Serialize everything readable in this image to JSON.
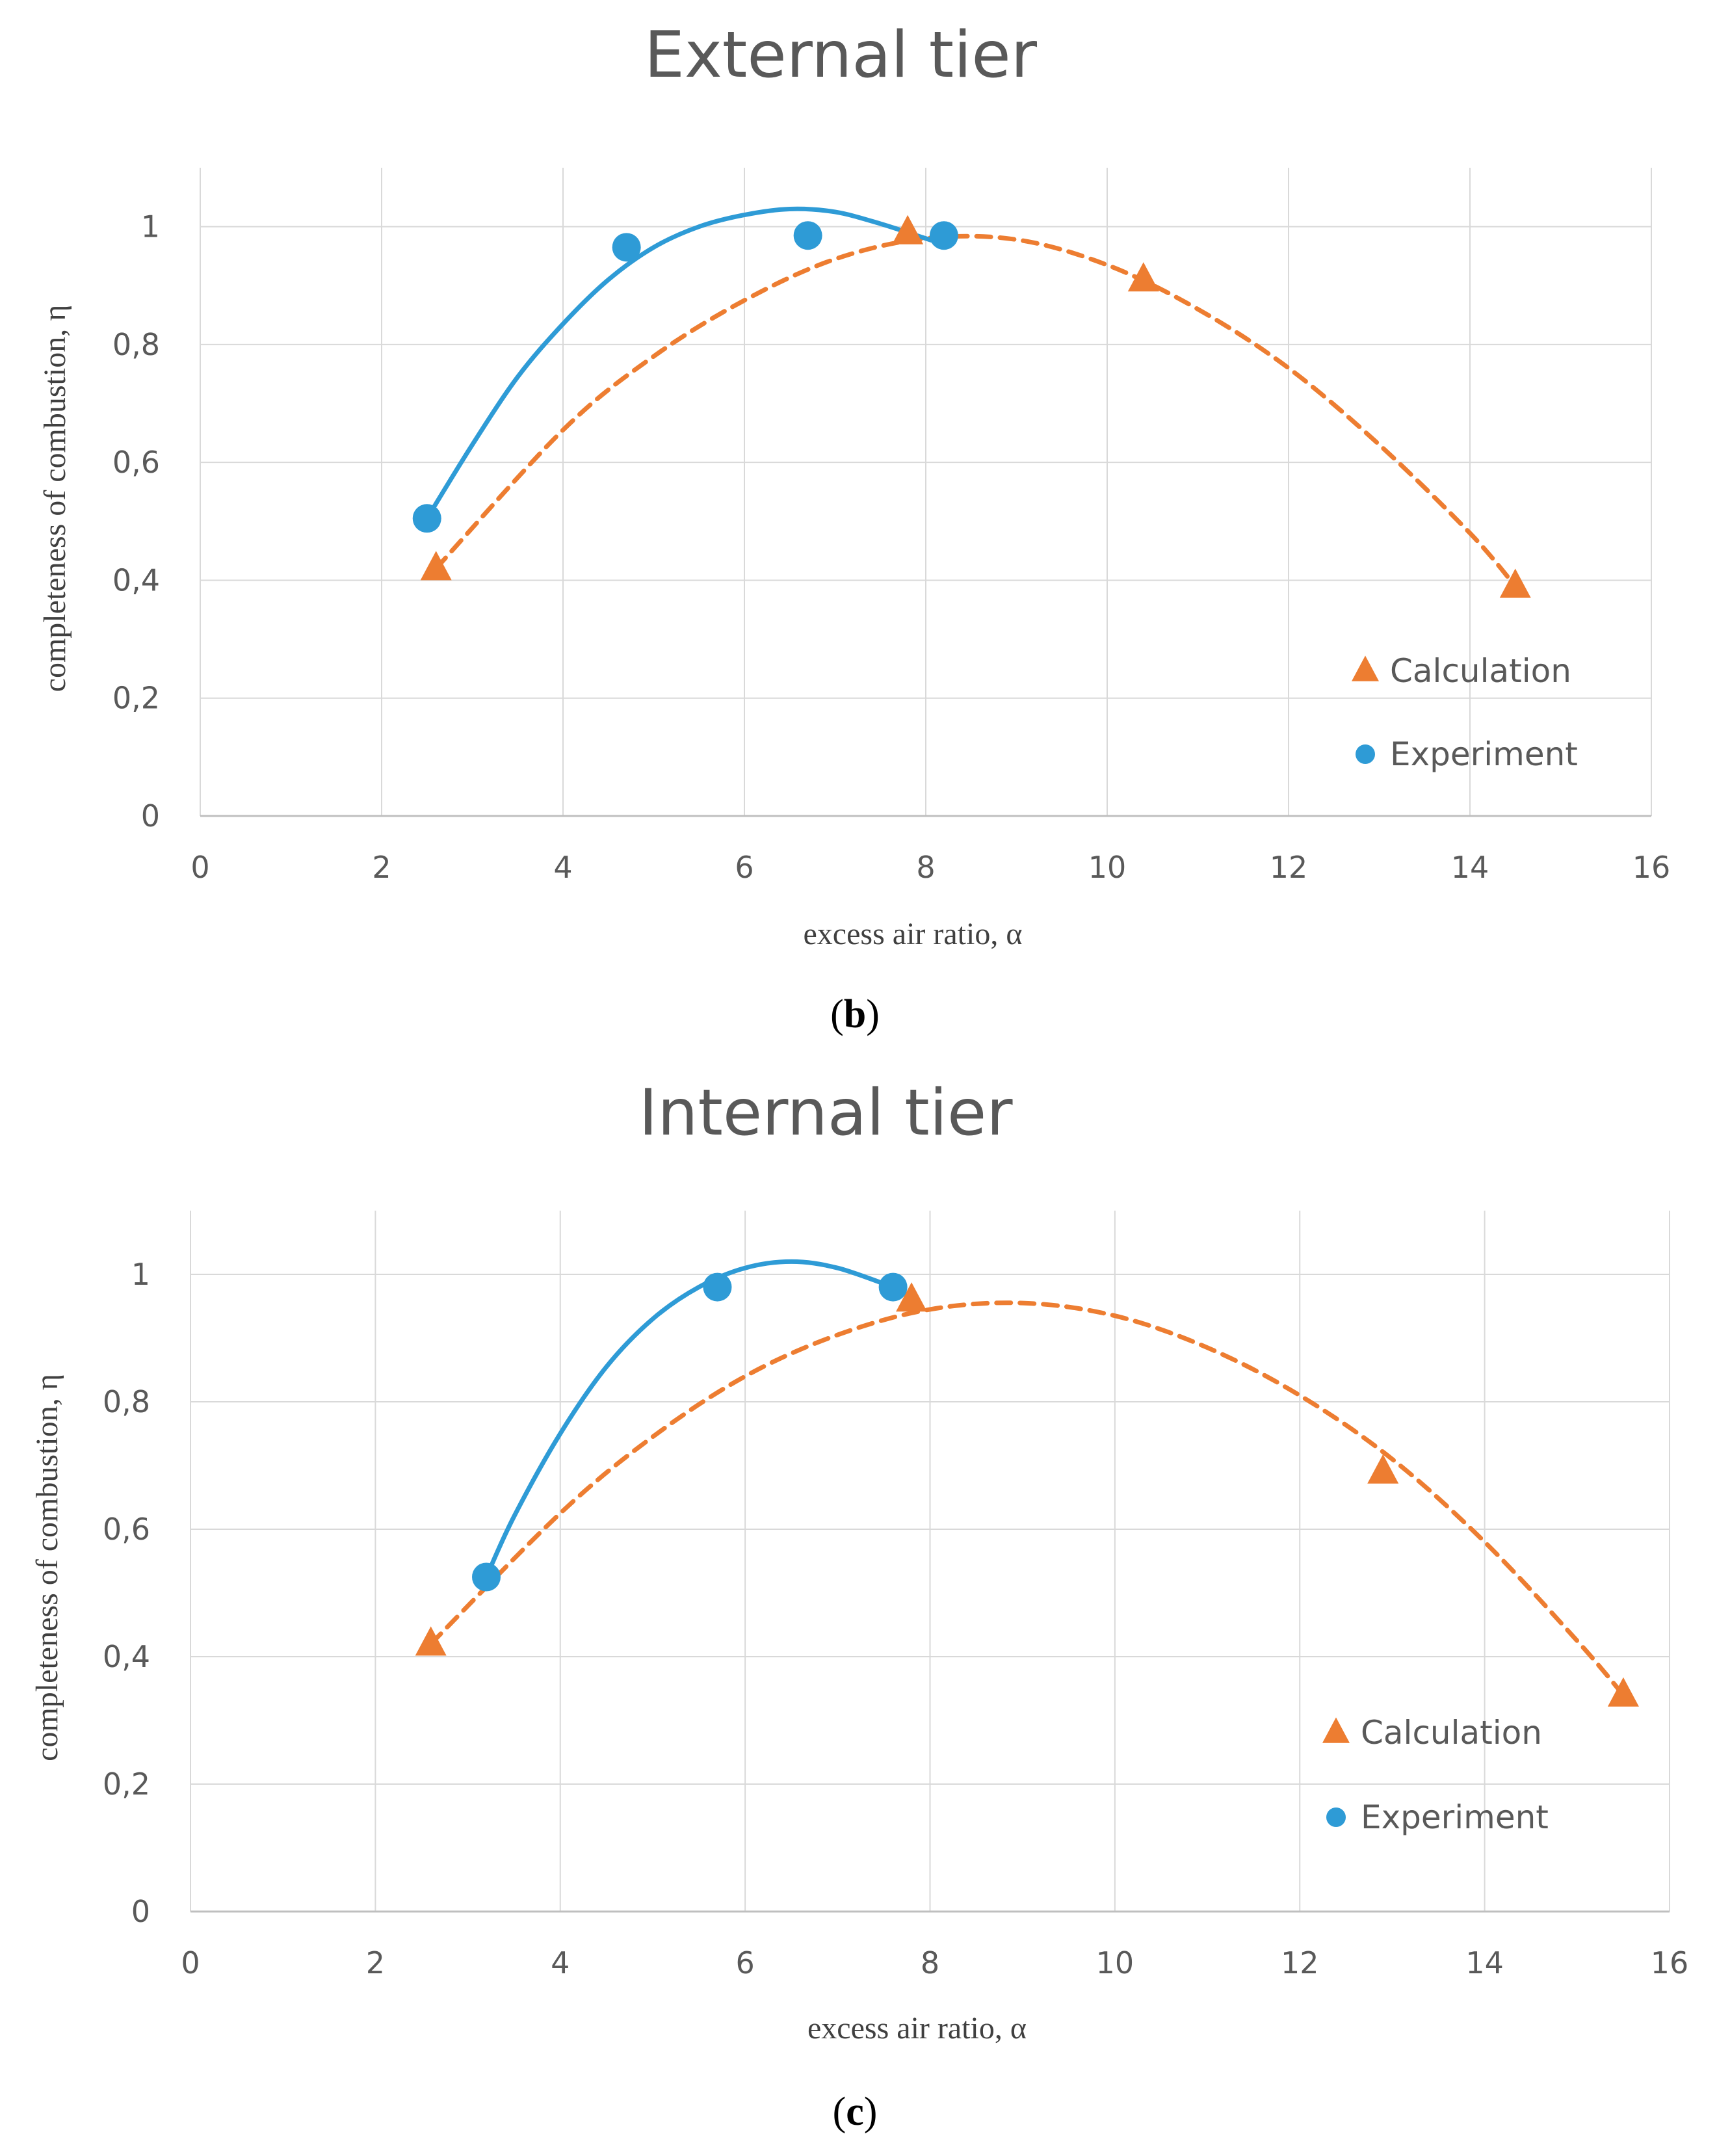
{
  "colors": {
    "calculation": "#ED7D31",
    "experiment": "#2E9BD6",
    "grid": "#D9D9D9",
    "text": "#595959"
  },
  "chart_data": [
    {
      "type": "scatter",
      "title": "External tier",
      "caption": {
        "open": "(",
        "letter": "b",
        "close": ")"
      },
      "xlabel": "excess air ratio, α",
      "ylabel": "completeness of combustion, η",
      "xlim": [
        0,
        16
      ],
      "ylim": [
        0,
        1.1
      ],
      "x_ticks": [
        0,
        2,
        4,
        6,
        8,
        10,
        12,
        14,
        16
      ],
      "x_tick_labels": [
        "0",
        "2",
        "4",
        "6",
        "8",
        "10",
        "12",
        "14",
        "16"
      ],
      "y_ticks": [
        0,
        0.2,
        0.4,
        0.6,
        0.8,
        1
      ],
      "y_tick_labels": [
        "0",
        "0,2",
        "0,4",
        "0,6",
        "0,8",
        "1"
      ],
      "grid": true,
      "legend_position": "bottom-right",
      "series": [
        {
          "name": "Calculation",
          "marker": "triangle",
          "trendline": "dashed polynomial",
          "points": [
            [
              2.6,
              0.42
            ],
            [
              7.8,
              0.99
            ],
            [
              10.4,
              0.91
            ],
            [
              14.5,
              0.39
            ]
          ],
          "trend": [
            [
              2.6,
              0.42
            ],
            [
              4.0,
              0.655
            ],
            [
              5.0,
              0.78
            ],
            [
              6.0,
              0.875
            ],
            [
              7.0,
              0.945
            ],
            [
              8.0,
              0.98
            ],
            [
              9.0,
              0.978
            ],
            [
              10.0,
              0.935
            ],
            [
              11.0,
              0.86
            ],
            [
              12.0,
              0.76
            ],
            [
              13.0,
              0.63
            ],
            [
              14.0,
              0.48
            ],
            [
              14.5,
              0.39
            ]
          ]
        },
        {
          "name": "Experiment",
          "marker": "circle",
          "trendline": "solid polynomial",
          "points": [
            [
              2.5,
              0.505
            ],
            [
              4.7,
              0.965
            ],
            [
              6.7,
              0.985
            ],
            [
              8.2,
              0.985
            ]
          ],
          "trend": [
            [
              2.5,
              0.505
            ],
            [
              3.0,
              0.63
            ],
            [
              3.5,
              0.745
            ],
            [
              4.0,
              0.835
            ],
            [
              4.5,
              0.91
            ],
            [
              5.0,
              0.965
            ],
            [
              5.5,
              1.0
            ],
            [
              6.0,
              1.02
            ],
            [
              6.5,
              1.03
            ],
            [
              7.0,
              1.025
            ],
            [
              7.5,
              1.005
            ],
            [
              8.0,
              0.98
            ],
            [
              8.2,
              0.97
            ]
          ]
        }
      ]
    },
    {
      "type": "scatter",
      "title": "Internal tier",
      "caption": {
        "open": "(",
        "letter": "c",
        "close": ")"
      },
      "xlabel": "excess air ratio, α",
      "ylabel": "completeness of combustion, η",
      "xlim": [
        0,
        16
      ],
      "ylim": [
        0,
        1.1
      ],
      "x_ticks": [
        0,
        2,
        4,
        6,
        8,
        10,
        12,
        14,
        16
      ],
      "x_tick_labels": [
        "0",
        "2",
        "4",
        "6",
        "8",
        "10",
        "12",
        "14",
        "16"
      ],
      "y_ticks": [
        0,
        0.2,
        0.4,
        0.6,
        0.8,
        1
      ],
      "y_tick_labels": [
        "0",
        "0,2",
        "0,4",
        "0,6",
        "0,8",
        "1"
      ],
      "grid": true,
      "legend_position": "bottom-right",
      "series": [
        {
          "name": "Calculation",
          "marker": "triangle",
          "trendline": "dashed polynomial",
          "points": [
            [
              2.6,
              0.42
            ],
            [
              7.8,
              0.96
            ],
            [
              12.9,
              0.69
            ],
            [
              15.5,
              0.34
            ]
          ],
          "trend": [
            [
              2.6,
              0.42
            ],
            [
              4.0,
              0.625
            ],
            [
              5.0,
              0.745
            ],
            [
              6.0,
              0.84
            ],
            [
              7.0,
              0.905
            ],
            [
              8.0,
              0.945
            ],
            [
              9.0,
              0.955
            ],
            [
              10.0,
              0.935
            ],
            [
              11.0,
              0.885
            ],
            [
              12.0,
              0.81
            ],
            [
              13.0,
              0.71
            ],
            [
              14.0,
              0.58
            ],
            [
              15.0,
              0.425
            ],
            [
              15.5,
              0.34
            ]
          ]
        },
        {
          "name": "Experiment",
          "marker": "circle",
          "trendline": "solid polynomial",
          "points": [
            [
              3.2,
              0.525
            ],
            [
              5.7,
              0.98
            ],
            [
              7.6,
              0.98
            ]
          ],
          "trend": [
            [
              3.2,
              0.525
            ],
            [
              3.5,
              0.62
            ],
            [
              4.0,
              0.75
            ],
            [
              4.5,
              0.855
            ],
            [
              5.0,
              0.93
            ],
            [
              5.5,
              0.98
            ],
            [
              6.0,
              1.01
            ],
            [
              6.5,
              1.02
            ],
            [
              7.0,
              1.01
            ],
            [
              7.6,
              0.98
            ]
          ]
        }
      ]
    }
  ]
}
